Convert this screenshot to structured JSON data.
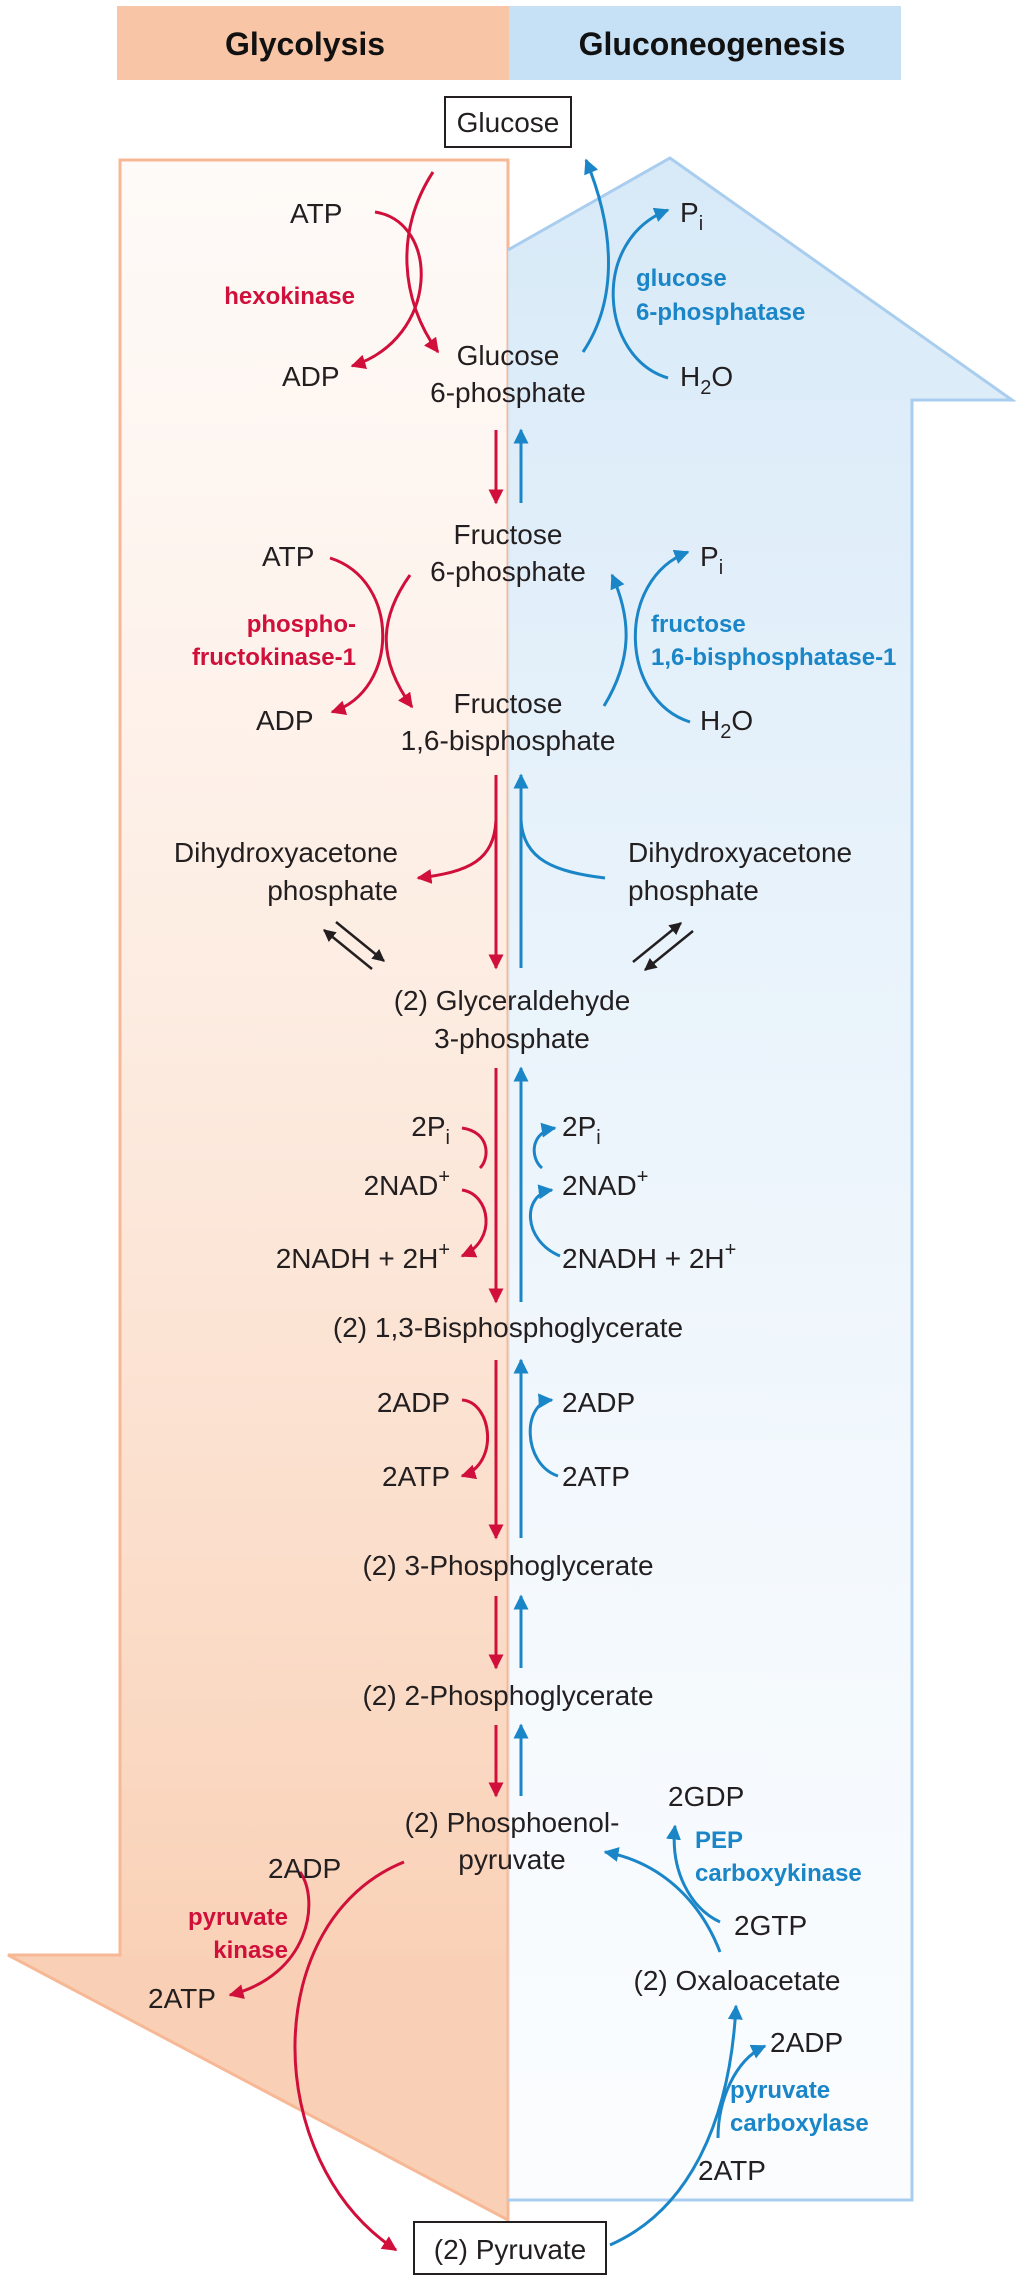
{
  "header": {
    "left_title": "Glycolysis",
    "right_title": "Gluconeogenesis",
    "left_color": "#f8c6a6",
    "right_color": "#c6e0f5"
  },
  "colors": {
    "glycolysis_arrow": "#d0103a",
    "gluconeogenesis_arrow": "#1a86c8",
    "text": "#231f20"
  },
  "metabolites": {
    "glucose": "Glucose",
    "g6p_1": "Glucose",
    "g6p_2": "6-phosphate",
    "f6p_1": "Fructose",
    "f6p_2": "6-phosphate",
    "f16bp_1": "Fructose",
    "f16bp_2": "1,6-bisphosphate",
    "dhap_left_1": "Dihydroxyacetone",
    "dhap_left_2": "phosphate",
    "dhap_right_1": "Dihydroxyacetone",
    "dhap_right_2": "phosphate",
    "gap_1": "(2) Glyceraldehyde",
    "gap_2": "3-phosphate",
    "bpg": "(2) 1,3-Bisphosphoglycerate",
    "pg3": "(2) 3-Phosphoglycerate",
    "pg2": "(2) 2-Phosphoglycerate",
    "pep_1": "(2) Phosphoenol-",
    "pep_2": "pyruvate",
    "oxaloacetate": "(2) Oxaloacetate",
    "pyruvate": "(2) Pyruvate"
  },
  "cofactors": {
    "atp_1": "ATP",
    "adp_1": "ADP",
    "pi_1_base": "P",
    "pi_1_sub": "i",
    "h2o_1_a": "H",
    "h2o_1_sub": "2",
    "h2o_1_b": "O",
    "atp_2": "ATP",
    "adp_2": "ADP",
    "pi_2_base": "P",
    "pi_2_sub": "i",
    "h2o_2_a": "H",
    "h2o_2_sub": "2",
    "h2o_2_b": "O",
    "left_2pi_base": "2P",
    "left_2pi_sub": "i",
    "left_nad_base": "2NAD",
    "left_nad_sup": "+",
    "left_nadh_base": "2NADH + 2H",
    "left_nadh_sup": "+",
    "right_2pi_base": "2P",
    "right_2pi_sub": "i",
    "right_nad_base": "2NAD",
    "right_nad_sup": "+",
    "right_nadh_base": "2NADH + 2H",
    "right_nadh_sup": "+",
    "left_2adp": "2ADP",
    "left_2atp": "2ATP",
    "right_2adp": "2ADP",
    "right_2atp": "2ATP",
    "pk_2adp": "2ADP",
    "pk_2atp": "2ATP",
    "gdp": "2GDP",
    "gtp": "2GTP",
    "pc_2adp": "2ADP",
    "pc_2atp": "2ATP"
  },
  "enzymes": {
    "hexokinase": "hexokinase",
    "g6pase_1": "glucose",
    "g6pase_2": "6-phosphatase",
    "pfk_1": "phospho-",
    "pfk_2": "fructokinase-1",
    "fbpase_1": "fructose",
    "fbpase_2": "1,6-bisphosphatase-1",
    "pk_1": "pyruvate",
    "pk_2": "kinase",
    "pepck_1": "PEP",
    "pepck_2": "carboxykinase",
    "pc_1": "pyruvate",
    "pc_2": "carboxylase"
  }
}
